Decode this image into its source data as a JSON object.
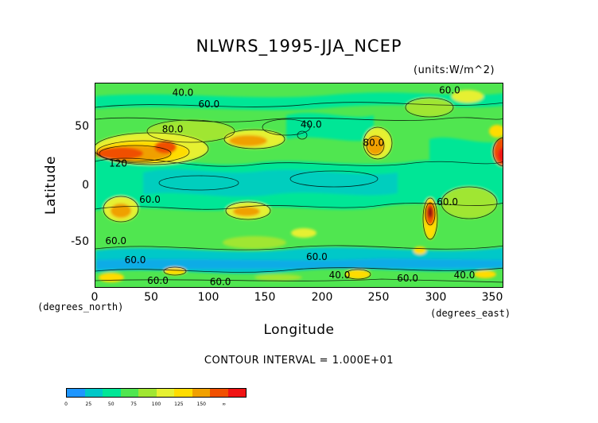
{
  "title": "NLWRS_1995-JJA_NCEP",
  "units": "(units:W/m^2)",
  "axes": {
    "ylabel": "Latitude",
    "xlabel": "Longitude",
    "x_unit": "(degrees_east)",
    "y_unit": "(degrees_north)",
    "yticks": [
      "50",
      "0",
      "-50"
    ],
    "xticks": [
      "0",
      "50",
      "100",
      "150",
      "200",
      "250",
      "300",
      "350"
    ]
  },
  "contour_interval": "CONTOUR INTERVAL = 1.000E+01",
  "map": {
    "lon_range": [
      0,
      360
    ],
    "lat_range": [
      -90,
      90
    ],
    "contour_labels": [
      {
        "text": "40.0",
        "lon": 77,
        "lat": 82
      },
      {
        "text": "60.0",
        "lon": 100,
        "lat": 72
      },
      {
        "text": "40.0",
        "lon": 190,
        "lat": 54
      },
      {
        "text": "80.0",
        "lon": 68,
        "lat": 50
      },
      {
        "text": "60.0",
        "lon": 312,
        "lat": 84
      },
      {
        "text": "120",
        "lon": 20,
        "lat": 20
      },
      {
        "text": "80.0",
        "lon": 245,
        "lat": 38
      },
      {
        "text": "60.0",
        "lon": 48,
        "lat": -12
      },
      {
        "text": "60.0",
        "lon": 310,
        "lat": -14
      },
      {
        "text": "60.0",
        "lon": 18,
        "lat": -48
      },
      {
        "text": "60.0",
        "lon": 35,
        "lat": -65
      },
      {
        "text": "60.0",
        "lon": 195,
        "lat": -62
      },
      {
        "text": "60.0",
        "lon": 55,
        "lat": -83
      },
      {
        "text": "60.0",
        "lon": 110,
        "lat": -84
      },
      {
        "text": "40.0",
        "lon": 215,
        "lat": -78
      },
      {
        "text": "60.0",
        "lon": 275,
        "lat": -81
      },
      {
        "text": "40.0",
        "lon": 325,
        "lat": -78
      }
    ]
  },
  "colorbar": {
    "colors": [
      "#1e96ff",
      "#00c8c8",
      "#00e696",
      "#50e650",
      "#a0e632",
      "#e6f032",
      "#ffdc00",
      "#f0a000",
      "#f05000",
      "#f01414"
    ],
    "labels": [
      {
        "text": "0",
        "pos": 0
      },
      {
        "text": "25",
        "pos": 1.25
      },
      {
        "text": "50",
        "pos": 2.5
      },
      {
        "text": "75",
        "pos": 3.75
      },
      {
        "text": "100",
        "pos": 5
      },
      {
        "text": "125",
        "pos": 6.25
      },
      {
        "text": "150",
        "pos": 7.5
      },
      {
        "text": "∞",
        "pos": 8.75
      }
    ]
  }
}
